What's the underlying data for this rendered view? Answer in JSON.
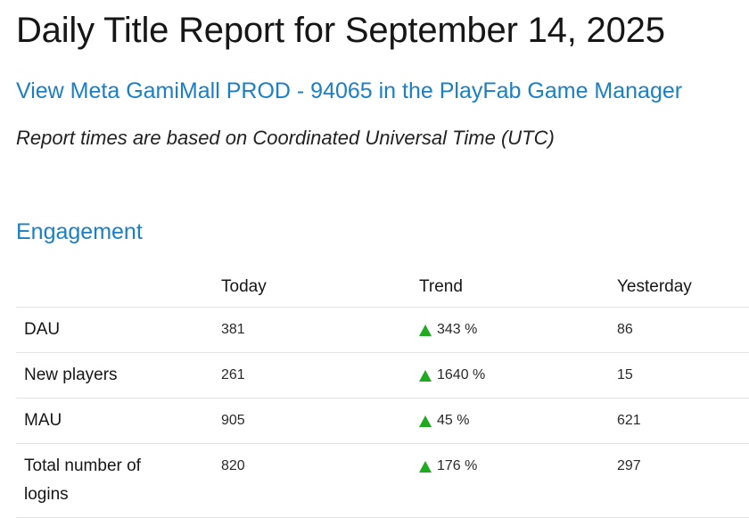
{
  "report": {
    "title": "Daily Title Report for September 14, 2025",
    "game_manager_link": "View Meta GamiMall PROD - 94065 in the PlayFab Game Manager",
    "time_note": "Report times are based on Coordinated Universal Time (UTC)"
  },
  "engagement": {
    "section_title": "Engagement",
    "columns": [
      "",
      "Today",
      "Trend",
      "Yesterday"
    ],
    "rows": [
      {
        "label": "DAU",
        "today": "381",
        "trend": "343 %",
        "yesterday": "86"
      },
      {
        "label": "New players",
        "today": "261",
        "trend": "1640 %",
        "yesterday": "15"
      },
      {
        "label": "MAU",
        "today": "905",
        "trend": "45 %",
        "yesterday": "621"
      },
      {
        "label": "Total number of logins",
        "today": "820",
        "trend": "176 %",
        "yesterday": "297"
      }
    ]
  },
  "icons": {
    "trend": "triangle-up-icon",
    "trend_color": "#1faa1f"
  },
  "colors": {
    "link": "#1a7fc6"
  }
}
